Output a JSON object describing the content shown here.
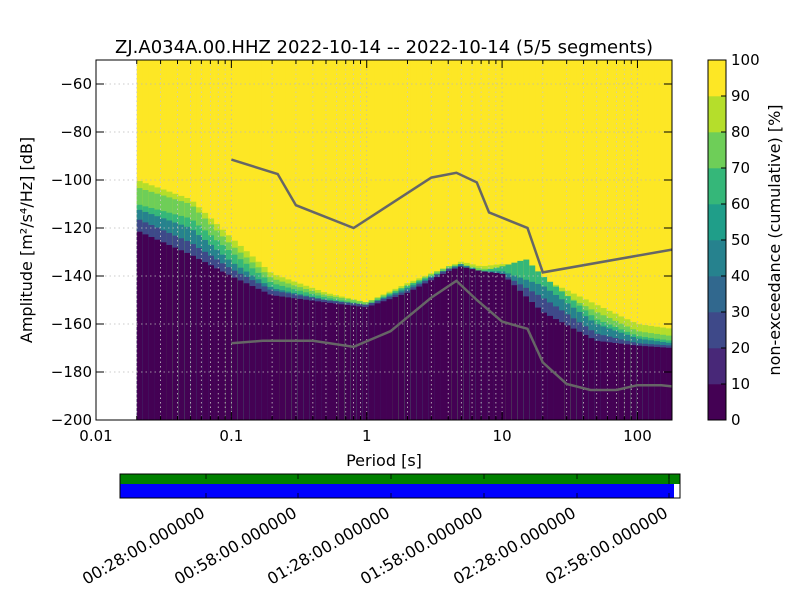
{
  "chart_data": {
    "type": "heatmap",
    "title": "ZJ.A034A.00.HHZ   2022-10-14 -- 2022-10-14  (5/5 segments)",
    "xlabel": "Period [s]",
    "ylabel": "Amplitude [m²/s⁴/Hz] [dB]",
    "x_scale": "log",
    "xlim": [
      0.01,
      180
    ],
    "ylim": [
      -200,
      -50
    ],
    "xticks": [
      {
        "value": 0.01,
        "label": "0.01"
      },
      {
        "value": 0.1,
        "label": "0.1"
      },
      {
        "value": 1,
        "label": "1"
      },
      {
        "value": 10,
        "label": "10"
      },
      {
        "value": 100,
        "label": "100"
      }
    ],
    "yticks": [
      {
        "value": -60,
        "label": "−60"
      },
      {
        "value": -80,
        "label": "−80"
      },
      {
        "value": -100,
        "label": "−100"
      },
      {
        "value": -120,
        "label": "−120"
      },
      {
        "value": -140,
        "label": "−140"
      },
      {
        "value": -160,
        "label": "−160"
      },
      {
        "value": -180,
        "label": "−180"
      },
      {
        "value": -200,
        "label": "−200"
      }
    ],
    "data_start_period": 0.02,
    "grid": true,
    "colorbar": {
      "label": "non-exceedance (cumulative) [%]",
      "range": [
        0,
        100
      ],
      "ticks": [
        {
          "value": 0,
          "label": "0"
        },
        {
          "value": 10,
          "label": "10"
        },
        {
          "value": 20,
          "label": "20"
        },
        {
          "value": 30,
          "label": "30"
        },
        {
          "value": 40,
          "label": "40"
        },
        {
          "value": 50,
          "label": "50"
        },
        {
          "value": 60,
          "label": "60"
        },
        {
          "value": 70,
          "label": "70"
        },
        {
          "value": 80,
          "label": "80"
        },
        {
          "value": 90,
          "label": "90"
        },
        {
          "value": 100,
          "label": "100"
        }
      ],
      "colors": [
        "#440154",
        "#482878",
        "#3e4989",
        "#31688e",
        "#26828e",
        "#1f9e89",
        "#35b779",
        "#6ece58",
        "#b5de2b",
        "#fde725"
      ]
    },
    "heatmap_bands": [
      {
        "percentile": 10,
        "period": [
          0.02,
          0.05,
          0.1,
          0.2,
          0.5,
          1,
          2,
          4,
          5,
          7,
          10,
          20,
          50,
          100,
          180
        ],
        "level": [
          -121,
          -131,
          -140,
          -148,
          -151,
          -153,
          -147,
          -138,
          -136,
          -138,
          -139,
          -155,
          -167,
          -169,
          -170
        ]
      },
      {
        "percentile": 30,
        "period": [
          0.02,
          0.05,
          0.1,
          0.2,
          0.5,
          1,
          2,
          4,
          5,
          7,
          10,
          20,
          50,
          100,
          180
        ],
        "level": [
          -116,
          -126,
          -137,
          -146,
          -150,
          -152,
          -146,
          -137,
          -136,
          -138,
          -139,
          -149,
          -164,
          -168,
          -169
        ]
      },
      {
        "percentile": 50,
        "period": [
          0.02,
          0.05,
          0.1,
          0.2,
          0.5,
          1,
          2,
          4,
          5,
          7,
          10,
          20,
          50,
          100,
          180
        ],
        "level": [
          -112,
          -120,
          -134,
          -145,
          -150,
          -152,
          -145,
          -137,
          -135,
          -138,
          -138,
          -144,
          -160,
          -166,
          -168
        ]
      },
      {
        "percentile": 70,
        "period": [
          0.02,
          0.05,
          0.1,
          0.2,
          0.5,
          1,
          2,
          4,
          5,
          7,
          10,
          15,
          20,
          50,
          100,
          180
        ],
        "level": [
          -110,
          -116,
          -130,
          -143,
          -149,
          -152,
          -144,
          -137,
          -135,
          -138,
          -136,
          -133,
          -140,
          -158,
          -165,
          -167
        ]
      },
      {
        "percentile": 80,
        "period": [
          0.02,
          0.05,
          0.1,
          0.2,
          0.5,
          1,
          2,
          4,
          5,
          7,
          10,
          20,
          50,
          100,
          180
        ],
        "level": [
          -103,
          -110,
          -127,
          -141,
          -148,
          -151,
          -144,
          -136,
          -135,
          -137,
          -137,
          -143,
          -155,
          -163,
          -165
        ]
      },
      {
        "percentile": 90,
        "period": [
          0.02,
          0.05,
          0.1,
          0.2,
          0.5,
          1,
          2,
          4,
          5,
          7,
          10,
          20,
          50,
          100,
          180
        ],
        "level": [
          -100,
          -108,
          -124,
          -139,
          -147,
          -151,
          -143,
          -136,
          -134,
          -136,
          -135,
          -141,
          -152,
          -160,
          -162
        ]
      }
    ],
    "series": [
      {
        "period": [
          0.1,
          0.17,
          0.4,
          0.8,
          1.5,
          3,
          4.6,
          6.5,
          10,
          15.4,
          20,
          30,
          45,
          70,
          100,
          150,
          180
        ],
        "amplitude": [
          -168,
          -167,
          -167,
          -169.5,
          -163,
          -149,
          -142,
          -150,
          -159,
          -162,
          -176,
          -185,
          -187.5,
          -187.5,
          -185.5,
          -185.5,
          -186
        ]
      },
      {
        "period": [
          0.1,
          0.22,
          0.3,
          0.8,
          3,
          4.6,
          6.5,
          8,
          15.4,
          20,
          180
        ],
        "amplitude": [
          -91.5,
          -97.5,
          -110.5,
          -120,
          -99,
          -97,
          -101,
          -113.5,
          -120,
          -138.5,
          -129
        ]
      }
    ]
  },
  "timeline": {
    "tick_labels": [
      "00:28:00.000000",
      "00:58:00.000000",
      "01:28:00.000000",
      "01:58:00.000000",
      "02:28:00.000000",
      "02:58:00.000000"
    ],
    "colors": {
      "data": "#008000",
      "psd": "#0000ff"
    }
  }
}
